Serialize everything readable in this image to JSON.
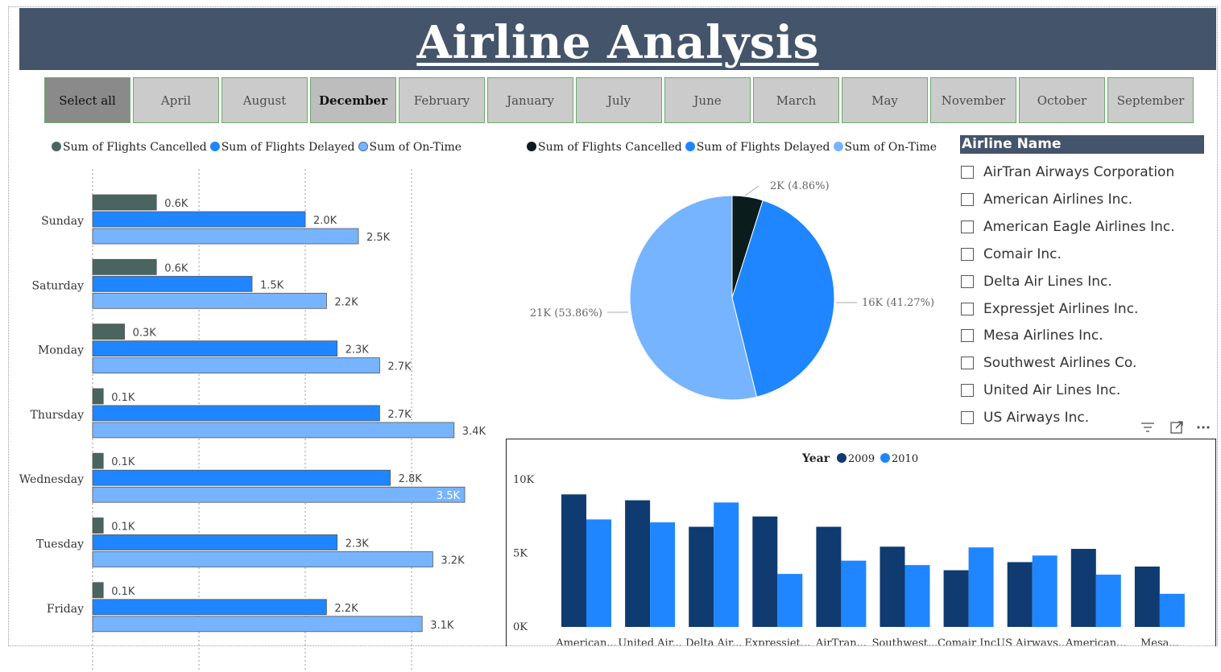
{
  "title": "Airline Analysis",
  "months": [
    {
      "label": "Select all",
      "state": "all"
    },
    {
      "label": "April",
      "state": ""
    },
    {
      "label": "August",
      "state": ""
    },
    {
      "label": "December",
      "state": "sel"
    },
    {
      "label": "February",
      "state": ""
    },
    {
      "label": "January",
      "state": ""
    },
    {
      "label": "July",
      "state": ""
    },
    {
      "label": "June",
      "state": ""
    },
    {
      "label": "March",
      "state": ""
    },
    {
      "label": "May",
      "state": ""
    },
    {
      "label": "November",
      "state": ""
    },
    {
      "label": "October",
      "state": ""
    },
    {
      "label": "September",
      "state": ""
    }
  ],
  "colors": {
    "cancelled_bar": "#4a6560",
    "delayed": "#1f86ff",
    "ontime": "#77b4ff",
    "cancelled_pie": "#0b1c1c",
    "y2009": "#0f3b70",
    "y2010": "#1f86ff",
    "banner": "#44546a"
  },
  "legend_left": [
    "Sum of Flights Cancelled",
    "Sum of Flights Delayed",
    "Sum of On-Time"
  ],
  "legend_pie": [
    "Sum of Flights Cancelled",
    "Sum of Flights Delayed",
    "Sum of On-Time"
  ],
  "airline_panel": {
    "title": "Airline Name",
    "items": [
      "AirTran Airways Corporation",
      "American Airlines Inc.",
      "American Eagle Airlines Inc.",
      "Comair Inc.",
      "Delta Air Lines Inc.",
      "Expressjet Airlines Inc.",
      "Mesa Airlines Inc.",
      "Southwest Airlines Co.",
      "United Air Lines Inc.",
      "US Airways Inc."
    ],
    "toolbar_icons": [
      "filter-icon",
      "focus-mode-icon",
      "more-options-icon"
    ]
  },
  "chart_data": [
    {
      "type": "bar",
      "orientation": "horizontal",
      "categories": [
        "Sunday",
        "Saturday",
        "Monday",
        "Thursday",
        "Wednesday",
        "Tuesday",
        "Friday"
      ],
      "series": [
        {
          "name": "Sum of Flights Cancelled",
          "values": [
            0.6,
            0.6,
            0.3,
            0.1,
            0.1,
            0.1,
            0.1
          ],
          "labels": [
            "0.6K",
            "0.6K",
            "0.3K",
            "0.1K",
            "0.1K",
            "0.1K",
            "0.1K"
          ]
        },
        {
          "name": "Sum of Flights Delayed",
          "values": [
            2.0,
            1.5,
            2.3,
            2.7,
            2.8,
            2.3,
            2.2
          ],
          "labels": [
            "2.0K",
            "1.5K",
            "2.3K",
            "2.7K",
            "2.8K",
            "2.3K",
            "2.2K"
          ]
        },
        {
          "name": "Sum of On-Time",
          "values": [
            2.5,
            2.2,
            2.7,
            3.4,
            3.5,
            3.2,
            3.1
          ],
          "labels": [
            "2.5K",
            "2.2K",
            "2.7K",
            "3.4K",
            "3.5K",
            "3.2K",
            "3.1K"
          ]
        }
      ],
      "value_unit": "K",
      "grid": true,
      "legend": "top-left"
    },
    {
      "type": "pie",
      "slices": [
        {
          "name": "Sum of Flights Cancelled",
          "percent": 4.86,
          "label": "2K (4.86%)"
        },
        {
          "name": "Sum of Flights Delayed",
          "percent": 41.27,
          "label": "16K (41.27%)"
        },
        {
          "name": "Sum of On-Time",
          "percent": 53.86,
          "label": "21K (53.86%)"
        }
      ],
      "legend": "top"
    },
    {
      "type": "bar",
      "legend_title": "Year",
      "categories": [
        "American...",
        "United Air...",
        "Delta Air...",
        "Expressjet...",
        "AirTran...",
        "Southwest...",
        "Comair Inc.",
        "US Airways...",
        "American...",
        "Mesa..."
      ],
      "series": [
        {
          "name": "2009",
          "values": [
            9000,
            8600,
            6800,
            7500,
            6800,
            5450,
            3850,
            4400,
            5300,
            4100
          ]
        },
        {
          "name": "2010",
          "values": [
            7300,
            7100,
            8450,
            3600,
            4500,
            4200,
            5400,
            4850,
            3550,
            2250
          ]
        }
      ],
      "y_ticks": [
        "0K",
        "5K",
        "10K"
      ],
      "ylim": [
        0,
        10000
      ],
      "legend": "top-center"
    }
  ]
}
